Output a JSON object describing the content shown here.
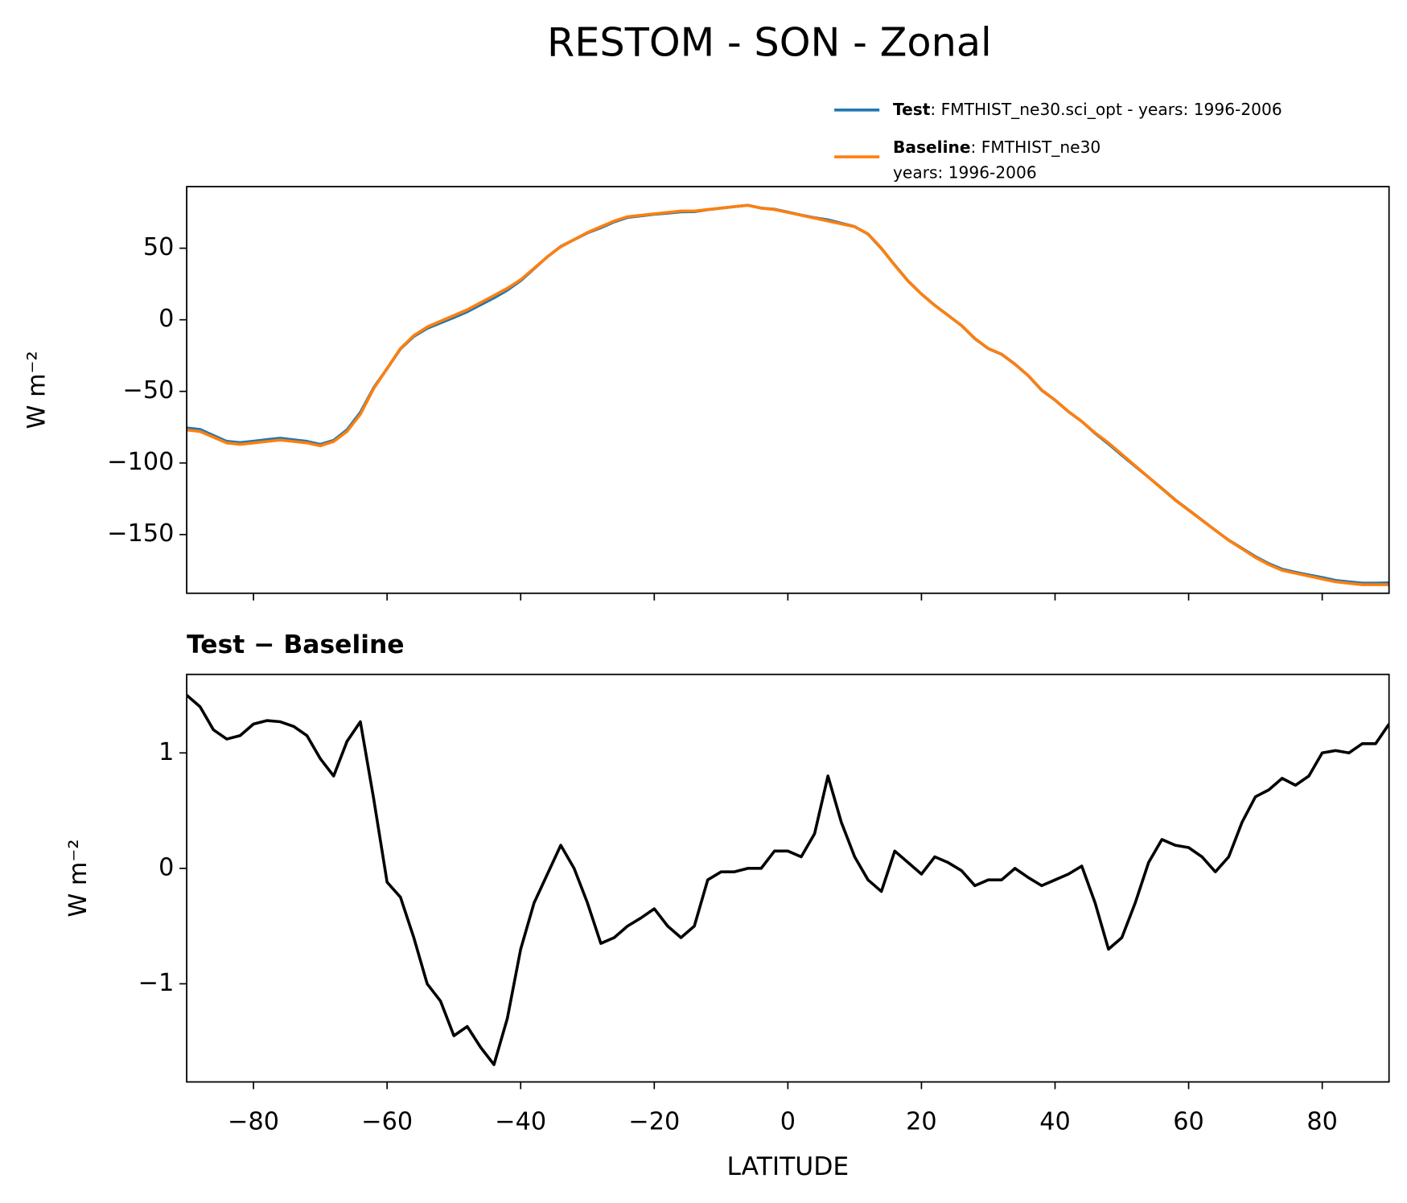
{
  "chart_data": [
    {
      "type": "line",
      "title": "RESTOM - SON - Zonal",
      "ylabel": "W m⁻²",
      "x": [
        -90,
        -88,
        -86,
        -84,
        -82,
        -80,
        -78,
        -76,
        -74,
        -72,
        -70,
        -68,
        -66,
        -64,
        -62,
        -60,
        -58,
        -56,
        -54,
        -52,
        -50,
        -48,
        -46,
        -44,
        -42,
        -40,
        -38,
        -36,
        -34,
        -32,
        -30,
        -28,
        -26,
        -24,
        -22,
        -20,
        -18,
        -16,
        -14,
        -12,
        -10,
        -8,
        -6,
        -4,
        -2,
        0,
        2,
        4,
        6,
        8,
        10,
        12,
        14,
        16,
        18,
        20,
        22,
        24,
        26,
        28,
        30,
        32,
        34,
        36,
        38,
        40,
        42,
        44,
        46,
        48,
        50,
        52,
        54,
        56,
        58,
        60,
        62,
        64,
        66,
        68,
        70,
        72,
        74,
        76,
        78,
        80,
        82,
        84,
        86,
        88,
        90
      ],
      "series": [
        {
          "name": "Test",
          "description": [
            ": FMTHIST_ne30.sci_opt - years: 1996-2006"
          ],
          "color": "#1f77b4",
          "values": [
            -75.5,
            -76.6,
            -80.8,
            -84.9,
            -85.8,
            -84.8,
            -83.7,
            -82.7,
            -83.8,
            -84.9,
            -87,
            -84.2,
            -76.9,
            -64.7,
            -47.4,
            -34.1,
            -20.3,
            -11.6,
            -6,
            -2.2,
            1.6,
            5.6,
            10.5,
            15.3,
            20.7,
            27.3,
            35.7,
            44,
            51.2,
            56,
            60.7,
            64.3,
            68.4,
            71.5,
            72.6,
            73.7,
            74.5,
            75.4,
            75.5,
            76.9,
            78,
            79,
            80,
            78,
            77.2,
            75.2,
            73.1,
            71.3,
            69.8,
            67.4,
            65.1,
            59.9,
            49.8,
            38.2,
            27.1,
            18,
            10.1,
            3.1,
            -4,
            -13.2,
            -20.1,
            -24.1,
            -31,
            -39.1,
            -49.2,
            -56.1,
            -64.1,
            -71,
            -79.3,
            -86.7,
            -94.6,
            -102.3,
            -110,
            -117.8,
            -125.8,
            -132.8,
            -139.9,
            -147,
            -153.9,
            -159.6,
            -165.4,
            -170.3,
            -174.2,
            -176.3,
            -178.2,
            -180,
            -182,
            -183,
            -183.9,
            -183.9,
            -183.7
          ]
        },
        {
          "name": "Baseline",
          "description": [
            ": FMTHIST_ne30",
            "years: 1996-2006"
          ],
          "color": "#ff7f0e",
          "values": [
            -77,
            -78,
            -82,
            -86,
            -87,
            -86,
            -85,
            -84,
            -85,
            -86,
            -88,
            -85,
            -78,
            -66,
            -48,
            -34,
            -20,
            -11,
            -5,
            -1,
            3,
            7,
            12,
            17,
            22,
            28,
            36,
            44,
            51,
            56,
            61,
            65,
            69,
            72,
            73,
            74,
            75,
            76,
            76,
            77,
            78,
            79,
            80,
            78,
            77,
            75,
            73,
            71,
            69,
            67,
            65,
            60,
            50,
            38,
            27,
            18,
            10,
            3,
            -4,
            -13,
            -20,
            -24,
            -31,
            -39,
            -49,
            -56,
            -64,
            -71,
            -79,
            -86,
            -94,
            -102,
            -110,
            -118,
            -126,
            -133,
            -140,
            -147,
            -154,
            -160,
            -166,
            -171,
            -175,
            -177,
            -179,
            -181,
            -183,
            -184,
            -185,
            -185,
            -185
          ]
        }
      ],
      "xlim": [
        -90,
        90
      ],
      "xticks": [
        -80,
        -60,
        -40,
        -20,
        0,
        20,
        40,
        60,
        80
      ],
      "ylim": [
        -191,
        93
      ],
      "yticks": [
        {
          "value": -150,
          "label": "−150"
        },
        {
          "value": -100,
          "label": "−100"
        },
        {
          "value": -50,
          "label": "−50"
        },
        0,
        50
      ]
    },
    {
      "type": "line",
      "subtitle": "Test − Baseline",
      "ylabel": "W m⁻²",
      "xlabel": "LATITUDE",
      "x": [
        -90,
        -88,
        -86,
        -84,
        -82,
        -80,
        -78,
        -76,
        -74,
        -72,
        -70,
        -68,
        -66,
        -64,
        -62,
        -60,
        -58,
        -56,
        -54,
        -52,
        -50,
        -48,
        -46,
        -44,
        -42,
        -40,
        -38,
        -36,
        -34,
        -32,
        -30,
        -28,
        -26,
        -24,
        -22,
        -20,
        -18,
        -16,
        -14,
        -12,
        -10,
        -8,
        -6,
        -4,
        -2,
        0,
        2,
        4,
        6,
        8,
        10,
        12,
        14,
        16,
        18,
        20,
        22,
        24,
        26,
        28,
        30,
        32,
        34,
        36,
        38,
        40,
        42,
        44,
        46,
        48,
        50,
        52,
        54,
        56,
        58,
        60,
        62,
        64,
        66,
        68,
        70,
        72,
        74,
        76,
        78,
        80,
        82,
        84,
        86,
        88,
        90
      ],
      "series": [
        {
          "color": "#000000",
          "values": [
            1.5,
            1.4,
            1.2,
            1.12,
            1.15,
            1.25,
            1.28,
            1.27,
            1.23,
            1.15,
            0.95,
            0.8,
            1.1,
            1.27,
            0.6,
            -0.12,
            -0.25,
            -0.6,
            -1.0,
            -1.15,
            -1.45,
            -1.37,
            -1.55,
            -1.7,
            -1.3,
            -0.7,
            -0.3,
            -0.05,
            0.2,
            0.0,
            -0.3,
            -0.65,
            -0.6,
            -0.5,
            -0.43,
            -0.35,
            -0.5,
            -0.6,
            -0.5,
            -0.1,
            -0.03,
            -0.03,
            0.0,
            0.0,
            0.15,
            0.15,
            0.1,
            0.3,
            0.8,
            0.4,
            0.1,
            -0.1,
            -0.2,
            0.15,
            0.05,
            -0.05,
            0.1,
            0.05,
            -0.02,
            -0.15,
            -0.1,
            -0.1,
            0.0,
            -0.08,
            -0.15,
            -0.1,
            -0.05,
            0.02,
            -0.3,
            -0.7,
            -0.6,
            -0.3,
            0.05,
            0.25,
            0.2,
            0.18,
            0.1,
            -0.03,
            0.1,
            0.4,
            0.62,
            0.68,
            0.78,
            0.72,
            0.8,
            1.0,
            1.02,
            1.0,
            1.08,
            1.08,
            1.25
          ]
        }
      ],
      "xlim": [
        -90,
        90
      ],
      "xticks": [
        {
          "value": -80,
          "label": "−80"
        },
        {
          "value": -60,
          "label": "−60"
        },
        {
          "value": -40,
          "label": "−40"
        },
        {
          "value": -20,
          "label": "−20"
        },
        0,
        20,
        40,
        60,
        80
      ],
      "ylim": [
        -1.85,
        1.68
      ],
      "yticks": [
        {
          "value": -1,
          "label": "−1"
        },
        0,
        1
      ]
    }
  ]
}
